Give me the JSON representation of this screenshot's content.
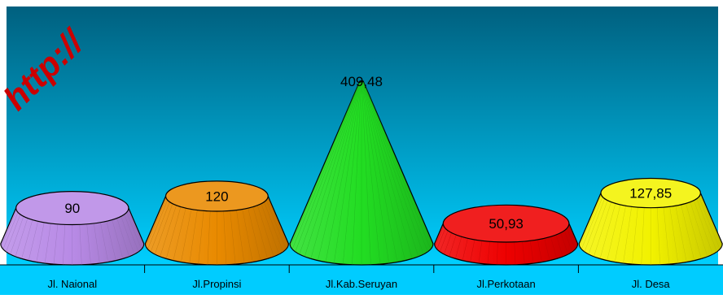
{
  "watermark": "http://",
  "colors": {
    "bg_top": "#00607f",
    "bg_bottom": "#00cfff",
    "axis_band": "#00ccff",
    "purple": "#b88ae6",
    "orange": "#e98a00",
    "green": "#22dd22",
    "red": "#ee0000",
    "yellow": "#f2f200",
    "watermark": "#cc0000"
  },
  "chart_data": {
    "type": "bar",
    "shape": "cone",
    "categories": [
      "Jl. Naional",
      "Jl.Propinsi",
      "Jl.Kab.Seruyan",
      "Jl.Perkotaan",
      "Jl. Desa"
    ],
    "values": [
      90,
      120,
      409.48,
      50.93,
      127.85
    ],
    "data_labels": [
      "90",
      "120",
      "409,48",
      "50,93",
      "127,85"
    ],
    "title": "",
    "xlabel": "",
    "ylabel": "",
    "grid": false,
    "legend": "none"
  }
}
